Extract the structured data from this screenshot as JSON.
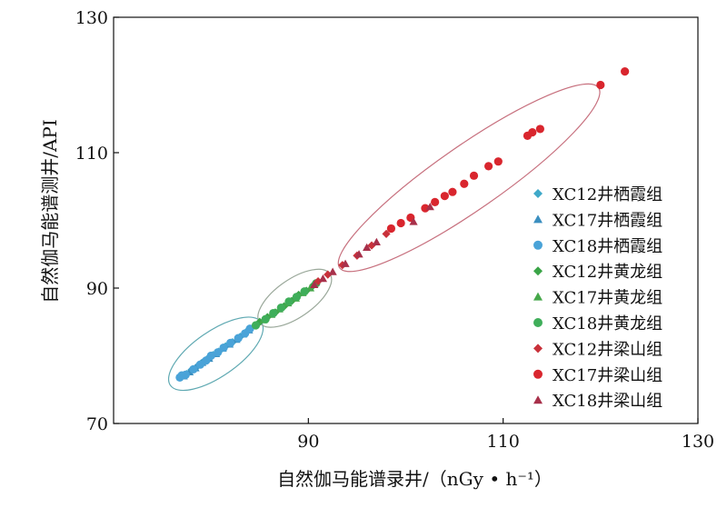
{
  "chart_data": {
    "type": "scatter",
    "xlabel": "自然伽马能谱录井/（nGy • h⁻¹）",
    "ylabel": "自然伽马能谱测井/API",
    "xlim": [
      70,
      130
    ],
    "ylim": [
      70,
      130
    ],
    "xticks": [
      90,
      110,
      130
    ],
    "yticks": [
      70,
      90,
      110,
      130
    ],
    "grid": false,
    "legend_position": "right",
    "series": [
      {
        "name": "XC12井栖霞组",
        "marker": "diamond",
        "color": "#3fa9c9",
        "points": [
          [
            77.5,
            77.3
          ],
          [
            78,
            77.9
          ],
          [
            78.5,
            78.3
          ],
          [
            79,
            78.9
          ],
          [
            79.6,
            79.5
          ],
          [
            80.2,
            80.1
          ],
          [
            80.8,
            80.6
          ],
          [
            81.5,
            81.4
          ],
          [
            82.2,
            82.0
          ],
          [
            83,
            82.8
          ],
          [
            83.6,
            83.5
          ]
        ]
      },
      {
        "name": "XC17井栖霞组",
        "marker": "triangle",
        "color": "#3b8fc0",
        "points": [
          [
            77.2,
            77.0
          ],
          [
            77.8,
            77.6
          ],
          [
            78.4,
            78.2
          ],
          [
            79.1,
            79.0
          ],
          [
            79.8,
            79.6
          ],
          [
            80.5,
            80.3
          ],
          [
            81.2,
            81.1
          ],
          [
            81.9,
            81.7
          ],
          [
            82.6,
            82.4
          ],
          [
            83.3,
            83.2
          ],
          [
            83.9,
            83.8
          ]
        ]
      },
      {
        "name": "XC18井栖霞组",
        "marker": "circle",
        "color": "#4aa3d8",
        "points": [
          [
            76.8,
            76.8
          ],
          [
            77.0,
            77.1
          ],
          [
            77.4,
            77.2
          ],
          [
            78.2,
            78.0
          ],
          [
            78.9,
            78.7
          ],
          [
            79.5,
            79.3
          ],
          [
            80.0,
            80.0
          ],
          [
            80.7,
            80.5
          ],
          [
            81.3,
            81.2
          ],
          [
            82.0,
            81.9
          ],
          [
            82.8,
            82.6
          ],
          [
            83.5,
            83.3
          ],
          [
            84.0,
            84.0
          ]
        ]
      },
      {
        "name": "XC12井黄龙组",
        "marker": "diamond",
        "color": "#3aa447",
        "points": [
          [
            85.0,
            85.0
          ],
          [
            85.8,
            85.7
          ],
          [
            86.6,
            86.4
          ],
          [
            87.5,
            87.3
          ],
          [
            88.3,
            88.1
          ],
          [
            89.0,
            89.0
          ],
          [
            89.8,
            89.6
          ],
          [
            90.5,
            90.4
          ]
        ]
      },
      {
        "name": "XC17井黄龙组",
        "marker": "triangle",
        "color": "#46a84a",
        "points": [
          [
            85.4,
            85.3
          ],
          [
            86.2,
            86.1
          ],
          [
            87.0,
            86.9
          ],
          [
            87.9,
            87.8
          ],
          [
            88.7,
            88.5
          ],
          [
            89.4,
            89.3
          ],
          [
            90.2,
            90.0
          ]
        ]
      },
      {
        "name": "XC18井黄龙组",
        "marker": "circle",
        "color": "#3fae5a",
        "points": [
          [
            84.6,
            84.5
          ],
          [
            85.6,
            85.4
          ],
          [
            86.4,
            86.3
          ],
          [
            87.2,
            87.1
          ],
          [
            88.0,
            88.0
          ],
          [
            88.8,
            88.7
          ],
          [
            89.6,
            89.5
          ],
          [
            90.8,
            90.7
          ]
        ]
      },
      {
        "name": "XC12井梁山组",
        "marker": "diamond",
        "color": "#c9313a",
        "points": [
          [
            91.0,
            91.0
          ],
          [
            92.0,
            92.0
          ],
          [
            93.5,
            93.4
          ],
          [
            95.0,
            94.8
          ],
          [
            96.5,
            96.3
          ],
          [
            98.0,
            98.0
          ]
        ]
      },
      {
        "name": "XC17井梁山组",
        "marker": "circle",
        "color": "#d9262e",
        "points": [
          [
            98.5,
            98.8
          ],
          [
            99.5,
            99.6
          ],
          [
            100.5,
            100.4
          ],
          [
            102.0,
            101.8
          ],
          [
            103.0,
            102.7
          ],
          [
            104.0,
            103.6
          ],
          [
            104.8,
            104.2
          ],
          [
            106.0,
            105.4
          ],
          [
            107.0,
            106.6
          ],
          [
            108.5,
            108.0
          ],
          [
            109.5,
            108.7
          ],
          [
            112.5,
            112.5
          ],
          [
            113.0,
            113.0
          ],
          [
            113.8,
            113.5
          ],
          [
            120.0,
            120.0
          ],
          [
            122.5,
            122.0
          ]
        ]
      },
      {
        "name": "XC18井梁山组",
        "marker": "triangle",
        "color": "#a8304a",
        "points": [
          [
            90.6,
            90.5
          ],
          [
            91.5,
            91.4
          ],
          [
            92.5,
            92.4
          ],
          [
            93.8,
            93.6
          ],
          [
            95.2,
            95.0
          ],
          [
            96.0,
            96.0
          ],
          [
            97.0,
            96.8
          ],
          [
            100.8,
            99.8
          ],
          [
            102.5,
            102.0
          ]
        ]
      }
    ],
    "ellipses": [
      {
        "group": "栖霞组",
        "color": "#5fa9b2",
        "center": [
          80.5,
          80.3
        ],
        "semi_major_units": 6.6,
        "semi_minor_units": 1.9
      },
      {
        "group": "黄龙组",
        "color": "#9aa89a",
        "center": [
          88.6,
          88.5
        ],
        "semi_major_units": 5.1,
        "semi_minor_units": 1.6
      },
      {
        "group": "梁山组",
        "color": "#c7707e",
        "center": [
          106.5,
          106.3
        ],
        "semi_major_units": 18.8,
        "semi_minor_units": 2.7
      }
    ]
  }
}
